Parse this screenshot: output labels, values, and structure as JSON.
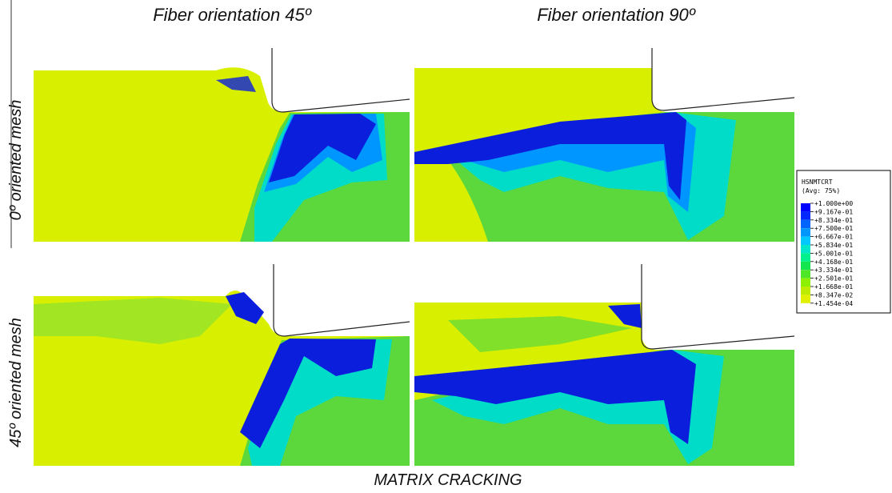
{
  "columns": [
    "Fiber orientation 45º",
    "Fiber orientation 90º"
  ],
  "rows": [
    "0º oriented mesh",
    "45º oriented mesh"
  ],
  "legend": {
    "title": "HSNMTCRT",
    "subtitle": "(Avg: 75%)",
    "labels": [
      "+1.000e+00",
      "+9.167e-01",
      "+8.334e-01",
      "+7.500e-01",
      "+6.667e-01",
      "+5.834e-01",
      "+5.001e-01",
      "+4.168e-01",
      "+3.334e-01",
      "+2.501e-01",
      "+1.668e-01",
      "+8.347e-02",
      "+1.454e-04"
    ],
    "colors": [
      "#0000ff",
      "#0028ff",
      "#0064ff",
      "#0096ff",
      "#00c8ff",
      "#00e6c8",
      "#00f08c",
      "#14e650",
      "#50e628",
      "#8cf000",
      "#beec00",
      "#e0f000"
    ]
  },
  "caption": "MATRIX CRACKING"
}
